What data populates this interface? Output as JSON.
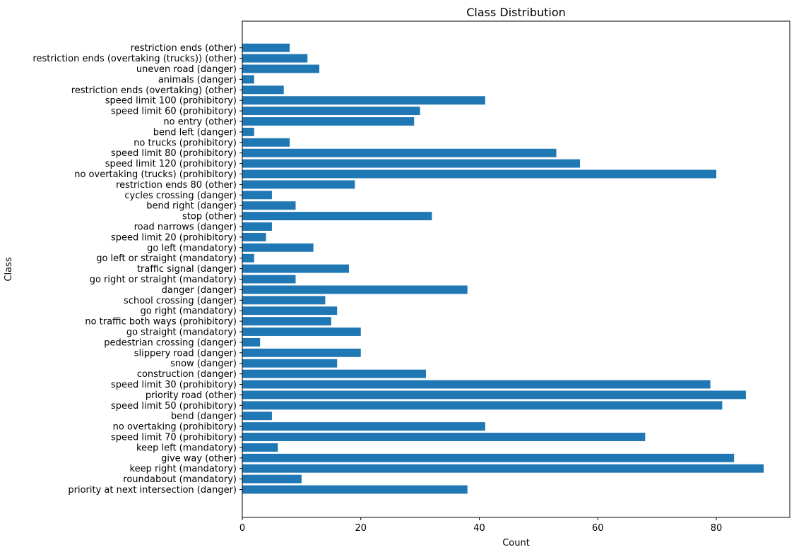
{
  "chart_data": {
    "type": "bar",
    "orientation": "horizontal",
    "title": "Class Distribution",
    "xlabel": "Count",
    "ylabel": "Class",
    "bar_color": "#1f77b4",
    "xlim": [
      0,
      92.4
    ],
    "xticks": [
      0,
      20,
      40,
      60,
      80
    ],
    "xtick_labels": [
      "0",
      "20",
      "40",
      "60",
      "80"
    ],
    "grid": false,
    "categories": [
      "priority at next intersection (danger)",
      "roundabout (mandatory)",
      "keep right (mandatory)",
      "give way (other)",
      "keep left (mandatory)",
      "speed limit 70 (prohibitory)",
      "no overtaking (prohibitory)",
      "bend (danger)",
      "speed limit 50 (prohibitory)",
      "priority road (other)",
      "speed limit 30 (prohibitory)",
      "construction (danger)",
      "snow (danger)",
      "slippery road (danger)",
      "pedestrian crossing (danger)",
      "go straight (mandatory)",
      "no traffic both ways (prohibitory)",
      "go right (mandatory)",
      "school crossing (danger)",
      "danger (danger)",
      "go right or straight (mandatory)",
      "traffic signal (danger)",
      "go left or straight (mandatory)",
      "go left (mandatory)",
      "speed limit 20 (prohibitory)",
      "road narrows (danger)",
      "stop (other)",
      "bend right (danger)",
      "cycles crossing (danger)",
      "restriction ends 80 (other)",
      "no overtaking (trucks) (prohibitory)",
      "speed limit 120 (prohibitory)",
      "speed limit 80 (prohibitory)",
      "no trucks (prohibitory)",
      "bend left (danger)",
      "no entry (other)",
      "speed limit 60 (prohibitory)",
      "speed limit 100 (prohibitory)",
      "restriction ends (overtaking) (other)",
      "animals (danger)",
      "uneven road (danger)",
      "restriction ends (overtaking (trucks)) (other)",
      "restriction ends (other)"
    ],
    "values": [
      38,
      10,
      88,
      83,
      6,
      68,
      41,
      5,
      81,
      85,
      79,
      31,
      16,
      20,
      3,
      20,
      15,
      16,
      14,
      38,
      9,
      18,
      2,
      12,
      4,
      5,
      32,
      9,
      5,
      19,
      80,
      57,
      53,
      8,
      2,
      29,
      30,
      41,
      7,
      2,
      13,
      11,
      8
    ]
  }
}
